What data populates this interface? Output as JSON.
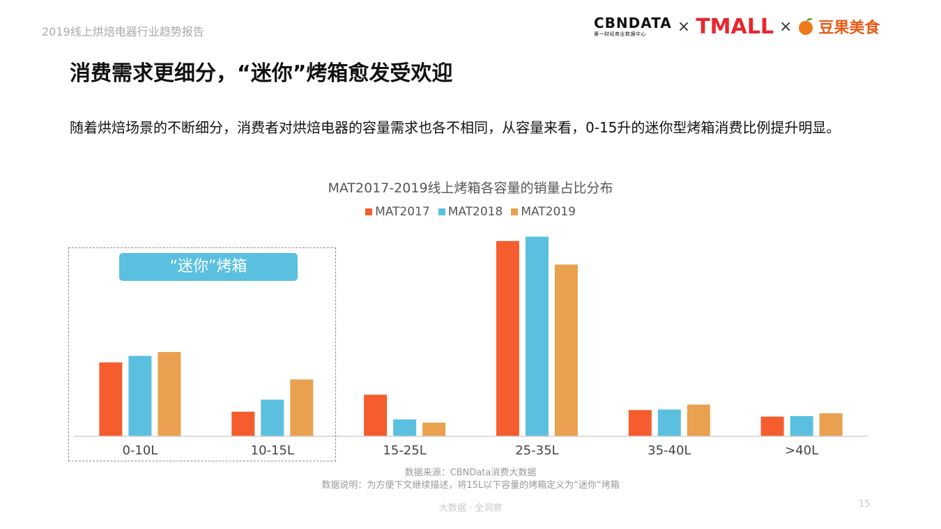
{
  "header": {
    "report_name": "2019线上烘焙电器行业趋势报告",
    "logo_cbndata": "CBNDATA",
    "logo_cbndata_sub": "第一财经商业数据中心",
    "separator": "×",
    "logo_tmall": "TMALL",
    "logo_douguo": "豆果美食"
  },
  "slide": {
    "title": "消费需求更细分，“迷你”烤箱愈发受欢迎",
    "intro": "随着烘焙场景的不断细分，消费者对烘焙电器的容量需求也各不相同，从容量来看，0-15升的迷你型烤箱消费比例提升明显。"
  },
  "highlight": {
    "label": "“迷你”烤箱"
  },
  "chart_data": {
    "type": "bar",
    "title": "MAT2017-2019线上烤箱各容量的销量占比分布",
    "categories": [
      "0-10L",
      "10-15L",
      "15-25L",
      "25-35L",
      "35-40L",
      ">40L"
    ],
    "series": [
      {
        "name": "MAT2017",
        "color": "#f55d2e",
        "values": [
          0.135,
          0.045,
          0.076,
          0.357,
          0.048,
          0.036
        ]
      },
      {
        "name": "MAT2018",
        "color": "#5bc0e0",
        "values": [
          0.147,
          0.067,
          0.031,
          0.365,
          0.049,
          0.037
        ]
      },
      {
        "name": "MAT2019",
        "color": "#e9a14f",
        "values": [
          0.154,
          0.104,
          0.025,
          0.314,
          0.058,
          0.042
        ]
      }
    ],
    "ylim": [
      0,
      0.4
    ],
    "legend": "top-center",
    "grid": false
  },
  "notes": {
    "source": "数据来源：CBNData消费大数据",
    "explanation": "数据说明：为方便下文继续描述，将15L以下容量的烤箱定义为“迷你”烤箱"
  },
  "footer": {
    "slogan": "大数据 · 全洞察",
    "page_number": "15"
  }
}
